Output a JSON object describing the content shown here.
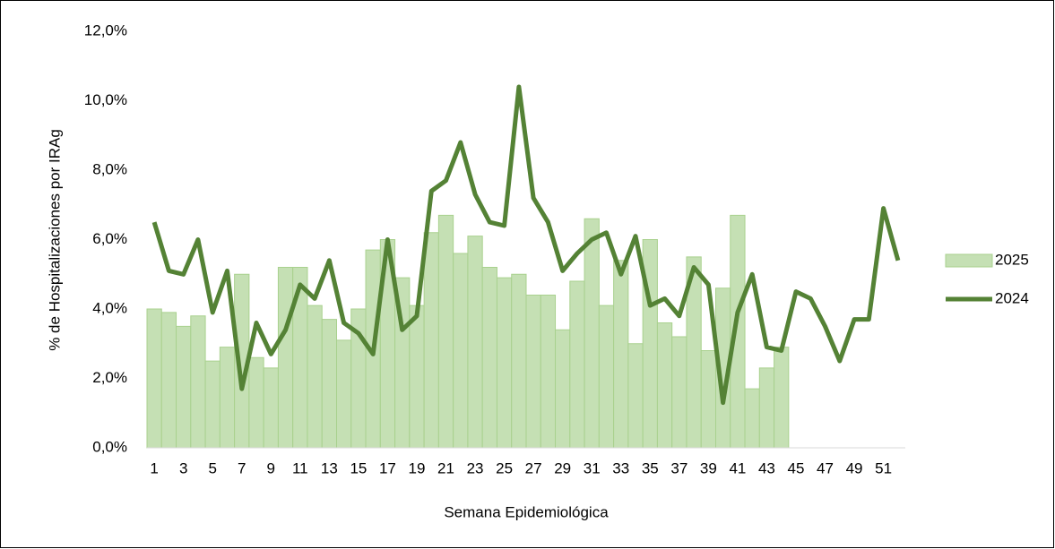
{
  "chart_data": {
    "type": "bar",
    "y_label": "% de Hospitalizaciones por IRAg",
    "x_label": "Semana Epidemiológica",
    "categories": [
      1,
      null,
      3,
      null,
      5,
      null,
      7,
      null,
      9,
      null,
      11,
      null,
      13,
      null,
      15,
      null,
      17,
      null,
      19,
      null,
      21,
      null,
      23,
      null,
      25,
      null,
      27,
      null,
      29,
      null,
      31,
      null,
      33,
      null,
      35,
      null,
      37,
      null,
      39,
      null,
      41,
      null,
      43,
      null,
      45,
      null,
      47,
      null,
      49,
      null,
      51,
      null
    ],
    "series": [
      {
        "name": "2025",
        "type": "bar",
        "color": "#c5e0b4",
        "values": [
          4.0,
          3.9,
          3.5,
          3.8,
          2.5,
          2.9,
          5.0,
          2.6,
          2.3,
          5.2,
          5.2,
          4.1,
          3.7,
          3.1,
          4.0,
          5.7,
          6.0,
          4.9,
          4.1,
          6.2,
          6.7,
          5.6,
          6.1,
          5.2,
          4.9,
          5.0,
          4.4,
          4.4,
          3.4,
          4.8,
          6.6,
          4.1,
          5.4,
          3.0,
          6.0,
          3.6,
          3.2,
          5.5,
          2.8,
          4.6,
          6.7,
          1.7,
          2.3,
          2.9,
          null,
          null,
          null,
          null,
          null,
          null,
          null,
          null
        ]
      },
      {
        "name": "2024",
        "type": "line",
        "color": "#548235",
        "values": [
          6.5,
          5.1,
          5.0,
          6.0,
          3.9,
          5.1,
          1.7,
          3.6,
          2.7,
          3.4,
          4.7,
          4.3,
          5.4,
          3.6,
          3.3,
          2.7,
          6.0,
          3.4,
          3.8,
          7.4,
          7.7,
          8.8,
          7.3,
          6.5,
          6.4,
          10.4,
          7.2,
          6.5,
          5.1,
          5.6,
          6.0,
          6.2,
          5.0,
          6.1,
          4.1,
          4.3,
          3.8,
          5.2,
          4.7,
          1.3,
          3.9,
          5.0,
          2.9,
          2.8,
          4.5,
          4.3,
          3.5,
          2.5,
          3.7,
          3.7,
          6.9,
          5.4
        ]
      }
    ],
    "ylim": [
      0,
      12
    ],
    "yticks": [
      {
        "value": 0,
        "label": "0,0%"
      },
      {
        "value": 2,
        "label": "2,0%"
      },
      {
        "value": 4,
        "label": "4,0%"
      },
      {
        "value": 6,
        "label": "6,0%"
      },
      {
        "value": 8,
        "label": "8,0%"
      },
      {
        "value": 10,
        "label": "10,0%"
      },
      {
        "value": 12,
        "label": "12,0%"
      }
    ],
    "grid": false,
    "legend": "right"
  }
}
